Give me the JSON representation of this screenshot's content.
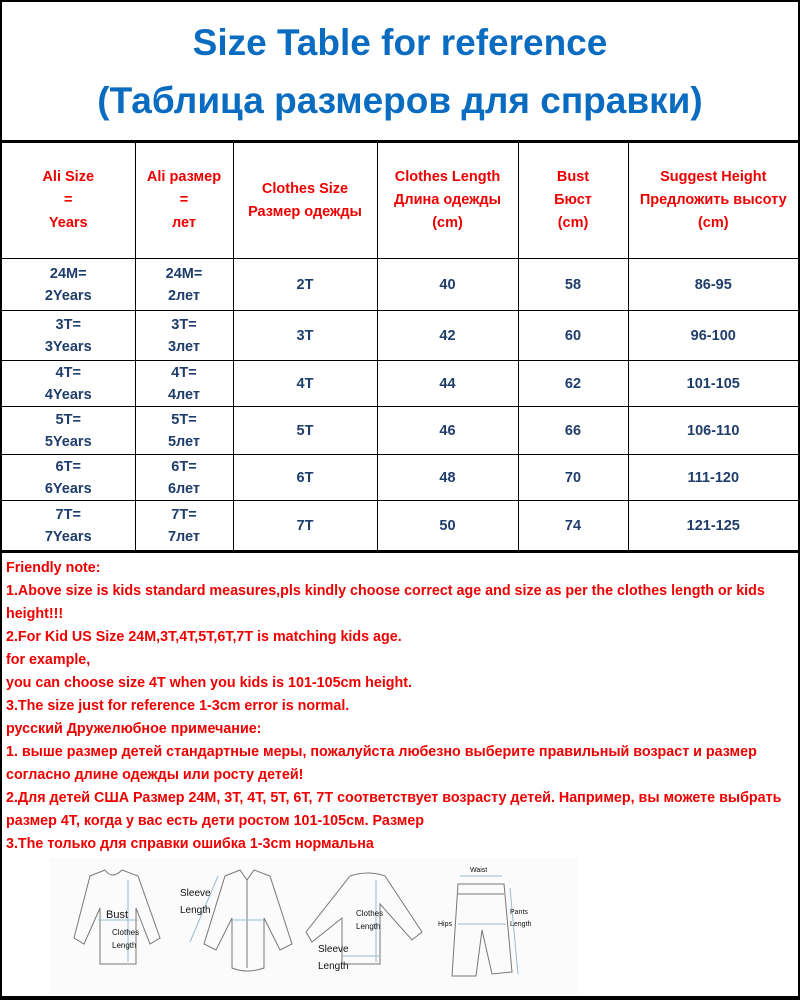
{
  "title": {
    "line1": "Size Table for reference",
    "line2": "(Таблица размеров для справки)"
  },
  "table": {
    "headers": [
      [
        "Ali Size",
        "=",
        "Years"
      ],
      [
        "Ali размер",
        "=",
        "лет"
      ],
      [
        "Clothes Size",
        "Размер одежды"
      ],
      [
        "Clothes Length",
        "Длина одежды",
        "(cm)"
      ],
      [
        "Bust",
        "Бюст",
        "(cm)"
      ],
      [
        "Suggest Height",
        "Предложить высоту",
        "(cm)"
      ]
    ],
    "rows": [
      {
        "years": [
          "24M=",
          "2Years"
        ],
        "let": [
          "24M=",
          "2лет"
        ],
        "size": "2T",
        "length": "40",
        "bust": "58",
        "height": "86-95"
      },
      {
        "years": [
          "3T=",
          "3Years"
        ],
        "let": [
          "3T=",
          "3лет"
        ],
        "size": "3T",
        "length": "42",
        "bust": "60",
        "height": "96-100"
      },
      {
        "years": [
          "4T=",
          "4Years"
        ],
        "let": [
          "4T=",
          "4лет"
        ],
        "size": "4T",
        "length": "44",
        "bust": "62",
        "height": "101-105"
      },
      {
        "years": [
          "5T=",
          "5Years"
        ],
        "let": [
          "5T=",
          "5лет"
        ],
        "size": "5T",
        "length": "46",
        "bust": "66",
        "height": "106-110"
      },
      {
        "years": [
          "6T=",
          "6Years"
        ],
        "let": [
          "6T=",
          "6лет"
        ],
        "size": "6T",
        "length": "48",
        "bust": "70",
        "height": "111-120"
      },
      {
        "years": [
          "7T=",
          "7Years"
        ],
        "let": [
          "7T=",
          "7лет"
        ],
        "size": "7T",
        "length": "50",
        "bust": "74",
        "height": "121-125"
      }
    ]
  },
  "notes": [
    "Friendly note:",
    "1.Above size is kids standard measures,pls kindly choose correct age and size as per the clothes length or kids height!!!",
    "2.For Kid US Size 24M,3T,4T,5T,6T,7T is matching kids age.",
    "for example,",
    "you can choose size 4T when you kids is 101-105cm height.",
    "3.The size just for reference 1-3cm error is normal.",
    "русский Дружелюбное примечание:",
    "1. выше размер детей стандартные меры, пожалуйста любезно выберите правильный возраст и размер согласно длине одежды или росту детей!",
    "2.Для детей США Размер 24M, 3T, 4T, 5T, 6T, 7T соответствует возрасту детей. Например, вы можете выбрать размер 4T, когда у вас есть дети ростом 101-105см. Размер",
    "3.The только для справки ошибка 1-3cm нормальна"
  ],
  "diagram": {
    "bust": "Bust",
    "clothes": "Clothes",
    "length": "Length",
    "sleeve": "Sleeve",
    "waist": "Waist",
    "hips": "Hips",
    "pants": "Pants"
  },
  "colors": {
    "title": "#0a6cc0",
    "header": "#e00000",
    "cells": "#1f3d6b",
    "notes": "#e00000"
  }
}
